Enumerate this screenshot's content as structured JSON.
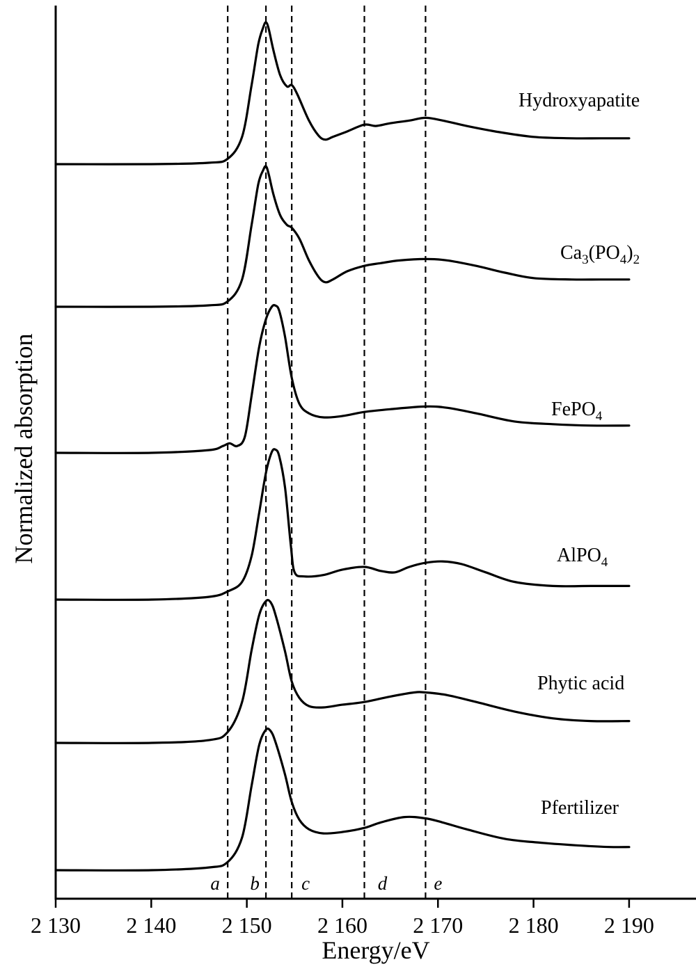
{
  "chart_data": {
    "type": "line",
    "xlabel": "Energy/eV",
    "ylabel": "Normalized absorption",
    "xlim": [
      2130,
      2197
    ],
    "x_ticks": [
      2130,
      2140,
      2150,
      2160,
      2170,
      2180,
      2190
    ],
    "x_tick_labels": [
      "2 130",
      "2 140",
      "2 150",
      "2 160",
      "2 170",
      "2 180",
      "2 190"
    ],
    "y_ticks_shown": false,
    "grid": false,
    "legend": "none",
    "reference_lines": [
      {
        "label": "a",
        "x": 2148.0
      },
      {
        "label": "b",
        "x": 2152.0
      },
      {
        "label": "c",
        "x": 2154.7
      },
      {
        "label": "d",
        "x": 2162.3
      },
      {
        "label": "e",
        "x": 2168.7
      }
    ],
    "series": [
      {
        "name": "Hydroxyapatite",
        "label": "Hydroxyapatite",
        "x": [
          2130,
          2140,
          2146,
          2148,
          2149.5,
          2150.5,
          2151.2,
          2151.7,
          2152,
          2152.3,
          2152.8,
          2153.5,
          2154.2,
          2154.7,
          2155.3,
          2156.5,
          2157.5,
          2158.2,
          2159,
          2160.5,
          2162.3,
          2163.5,
          2165,
          2167,
          2168.7,
          2170.5,
          2173,
          2176,
          2180,
          2184,
          2187,
          2190
        ],
        "y": [
          0.0,
          0.0,
          0.01,
          0.04,
          0.2,
          0.58,
          0.88,
          1.0,
          1.04,
          0.99,
          0.83,
          0.65,
          0.57,
          0.58,
          0.51,
          0.32,
          0.21,
          0.18,
          0.2,
          0.24,
          0.29,
          0.28,
          0.3,
          0.32,
          0.34,
          0.32,
          0.28,
          0.24,
          0.2,
          0.19,
          0.19,
          0.19
        ]
      },
      {
        "name": "Ca3(PO4)2",
        "label_main": "Ca",
        "label_sub1": "3",
        "label_mid": "(PO",
        "label_sub2": "4",
        "label_close": ")",
        "label_sub3": "2",
        "x": [
          2130,
          2140,
          2146,
          2148,
          2149.5,
          2150.5,
          2151.2,
          2151.7,
          2152,
          2152.3,
          2152.8,
          2153.5,
          2154.2,
          2154.7,
          2155.5,
          2156.5,
          2157.5,
          2158.2,
          2159,
          2160.5,
          2162.3,
          2164,
          2166,
          2168.7,
          2171,
          2174,
          2177,
          2180,
          2184,
          2187,
          2190
        ],
        "y": [
          0.0,
          0.0,
          0.01,
          0.04,
          0.2,
          0.6,
          0.9,
          1.0,
          1.03,
          0.97,
          0.82,
          0.67,
          0.6,
          0.58,
          0.5,
          0.34,
          0.22,
          0.18,
          0.2,
          0.26,
          0.3,
          0.32,
          0.34,
          0.35,
          0.34,
          0.3,
          0.25,
          0.21,
          0.2,
          0.2,
          0.2
        ]
      },
      {
        "name": "FePO4",
        "label_main": "FePO",
        "label_sub1": "4",
        "x": [
          2130,
          2140,
          2146,
          2147.5,
          2148.2,
          2149,
          2149.8,
          2150.5,
          2151.3,
          2152,
          2152.6,
          2153,
          2153.4,
          2154,
          2154.7,
          2155.5,
          2156.5,
          2158,
          2160,
          2162.3,
          2165,
          2168.7,
          2171,
          2174,
          2178,
          2182,
          2186,
          2190
        ],
        "y": [
          0.0,
          0.0,
          0.02,
          0.05,
          0.07,
          0.05,
          0.12,
          0.42,
          0.78,
          0.98,
          1.07,
          1.08,
          1.04,
          0.85,
          0.55,
          0.36,
          0.29,
          0.26,
          0.27,
          0.3,
          0.32,
          0.34,
          0.33,
          0.29,
          0.23,
          0.21,
          0.2,
          0.2
        ]
      },
      {
        "name": "AlPO4",
        "label_main": "AlPO",
        "label_sub1": "4",
        "x": [
          2130,
          2140,
          2146,
          2148,
          2149.5,
          2150.5,
          2151.3,
          2152,
          2152.6,
          2153,
          2153.4,
          2154,
          2154.6,
          2155,
          2156,
          2158,
          2160,
          2162.3,
          2164,
          2165.5,
          2167,
          2168.7,
          2170.5,
          2172.5,
          2175,
          2178,
          2182,
          2186,
          2190
        ],
        "y": [
          0.0,
          0.0,
          0.02,
          0.06,
          0.13,
          0.32,
          0.64,
          0.93,
          1.08,
          1.1,
          1.05,
          0.82,
          0.4,
          0.2,
          0.17,
          0.18,
          0.22,
          0.24,
          0.21,
          0.2,
          0.24,
          0.27,
          0.28,
          0.26,
          0.2,
          0.13,
          0.1,
          0.1,
          0.1
        ]
      },
      {
        "name": "Phytic acid",
        "label": "Phytic acid",
        "x": [
          2130,
          2140,
          2146,
          2148,
          2149.5,
          2150.5,
          2151.3,
          2152,
          2152.5,
          2153,
          2154,
          2154.7,
          2155.5,
          2156.5,
          2158,
          2160,
          2162.3,
          2165,
          2167.5,
          2168.7,
          2171,
          2174,
          2178,
          2182,
          2186,
          2190
        ],
        "y": [
          0.0,
          0.0,
          0.02,
          0.08,
          0.3,
          0.68,
          0.94,
          1.04,
          1.03,
          0.94,
          0.67,
          0.45,
          0.33,
          0.27,
          0.26,
          0.28,
          0.3,
          0.34,
          0.37,
          0.37,
          0.35,
          0.3,
          0.23,
          0.18,
          0.16,
          0.16
        ]
      },
      {
        "name": "Pfertilizer",
        "label": "Pfertilizer",
        "x": [
          2130,
          2140,
          2146,
          2148,
          2149.5,
          2150.5,
          2151.3,
          2152,
          2152.5,
          2153,
          2154,
          2154.7,
          2155.5,
          2156.5,
          2158,
          2160,
          2162.3,
          2164,
          2166.5,
          2168.7,
          2170.5,
          2173,
          2177,
          2181,
          2185,
          2188,
          2190
        ],
        "y": [
          0.0,
          0.0,
          0.02,
          0.06,
          0.24,
          0.62,
          0.92,
          1.03,
          1.02,
          0.94,
          0.7,
          0.5,
          0.37,
          0.3,
          0.27,
          0.28,
          0.31,
          0.35,
          0.39,
          0.38,
          0.35,
          0.3,
          0.23,
          0.2,
          0.18,
          0.17,
          0.17
        ]
      }
    ]
  }
}
